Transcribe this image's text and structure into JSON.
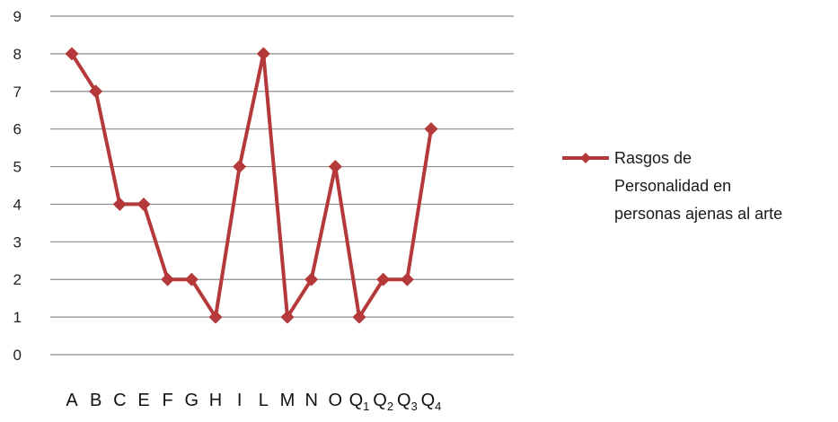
{
  "chart_data": {
    "type": "line",
    "categories": [
      {
        "base": "A",
        "sub": ""
      },
      {
        "base": "B",
        "sub": ""
      },
      {
        "base": "C",
        "sub": ""
      },
      {
        "base": "E",
        "sub": ""
      },
      {
        "base": "F",
        "sub": ""
      },
      {
        "base": "G",
        "sub": ""
      },
      {
        "base": "H",
        "sub": ""
      },
      {
        "base": "I",
        "sub": ""
      },
      {
        "base": "L",
        "sub": ""
      },
      {
        "base": "M",
        "sub": ""
      },
      {
        "base": "N",
        "sub": ""
      },
      {
        "base": "O",
        "sub": ""
      },
      {
        "base": "Q",
        "sub": "1"
      },
      {
        "base": "Q",
        "sub": "2"
      },
      {
        "base": "Q",
        "sub": "3"
      },
      {
        "base": "Q",
        "sub": "4"
      }
    ],
    "series": [
      {
        "name": "Rasgos de Personalidad en personas ajenas al arte",
        "name_lines": [
          "Rasgos de",
          "Personalidad en",
          "personas ajenas al arte"
        ],
        "values": [
          8,
          7,
          4,
          4,
          2,
          2,
          1,
          5,
          8,
          1,
          2,
          5,
          1,
          2,
          2,
          6
        ],
        "color": "#b5393a",
        "marker": "diamond"
      }
    ],
    "ylim": [
      0,
      9
    ],
    "yticks": [
      0,
      1,
      2,
      3,
      4,
      5,
      6,
      7,
      8,
      9
    ],
    "title": "",
    "xlabel": "",
    "ylabel": "",
    "grid": true,
    "legend_position": "right"
  }
}
